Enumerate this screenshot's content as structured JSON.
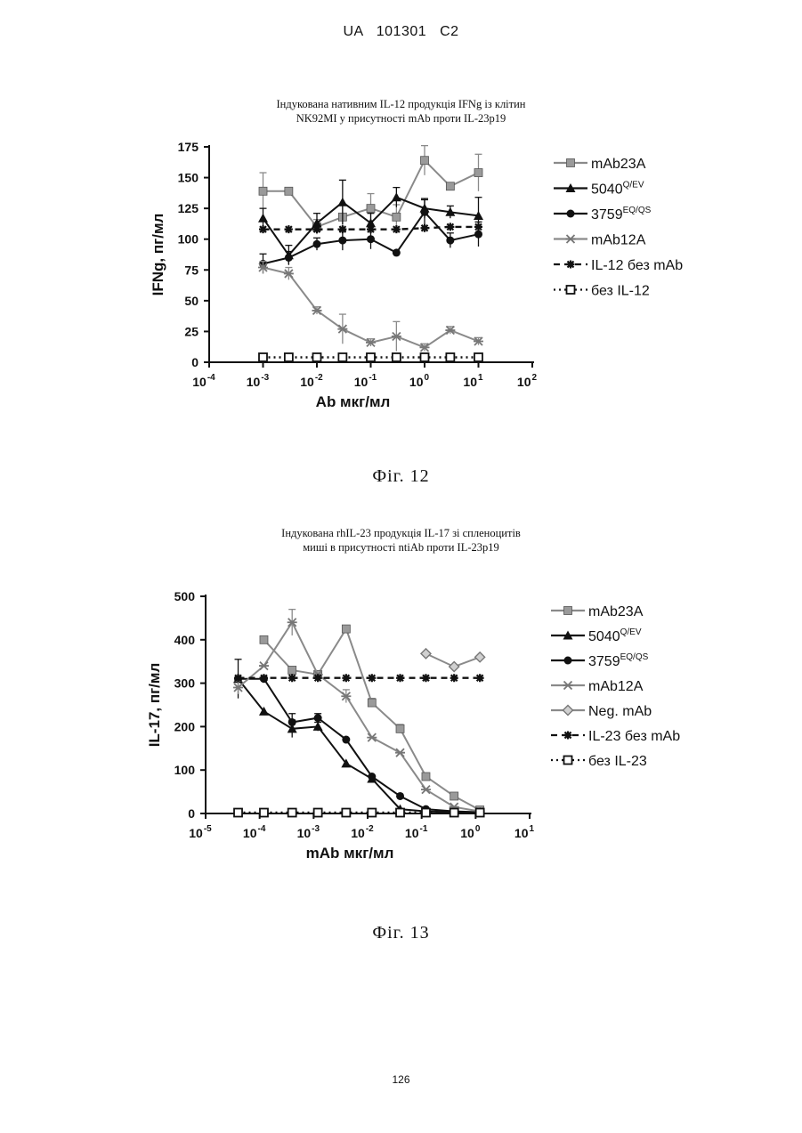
{
  "header": {
    "left": "UA",
    "number": "101301",
    "code": "C2",
    "full": "UA   101301   C2"
  },
  "page_number": "126",
  "figures": [
    {
      "caption": "Фіг. 12"
    },
    {
      "caption": "Фіг. 13"
    }
  ],
  "chart_data": [
    {
      "type": "line",
      "title_line1": "Індукована нативним IL-12 продукція IFNg із клітин",
      "title_line2": "NK92MI у присутності mAb проти IL-23p19",
      "xlabel": "Ab мкг/мл",
      "ylabel": "IFNg, пг/мл",
      "x_scale": "log",
      "xlim_exp": [
        -4,
        2
      ],
      "xticks": [
        {
          "base": "10",
          "exp": "-4",
          "v": -4
        },
        {
          "base": "10",
          "exp": "-3",
          "v": -3
        },
        {
          "base": "10",
          "exp": "-2",
          "v": -2
        },
        {
          "base": "10",
          "exp": "-1",
          "v": -1
        },
        {
          "base": "10",
          "exp": "0",
          "v": 0
        },
        {
          "base": "10",
          "exp": "1",
          "v": 1
        },
        {
          "base": "10",
          "exp": "2",
          "v": 2
        }
      ],
      "ylim": [
        0,
        175
      ],
      "yticks": [
        "0",
        "25",
        "50",
        "75",
        "100",
        "125",
        "150",
        "175"
      ],
      "ytick_values": [
        0,
        25,
        50,
        75,
        100,
        125,
        150,
        175
      ],
      "x": [
        0.001,
        0.003,
        0.01,
        0.03,
        0.1,
        0.3,
        1,
        3,
        10
      ],
      "legend_position": "right",
      "series": [
        {
          "name": "mAb23A",
          "sup": "",
          "marker": "square-gray",
          "dash": "solid",
          "color": "#8a8a8a",
          "values": [
            139,
            139,
            110,
            118,
            125,
            118,
            164,
            143,
            154
          ],
          "err": [
            15,
            0,
            6,
            10,
            12,
            10,
            12,
            0,
            15
          ]
        },
        {
          "name": "5040",
          "sup": "Q/EV",
          "marker": "triangle",
          "dash": "solid",
          "color": "#111111",
          "values": [
            117,
            87,
            113,
            130,
            113,
            134,
            125,
            122,
            119
          ],
          "err": [
            8,
            8,
            8,
            18,
            8,
            8,
            8,
            5,
            15
          ]
        },
        {
          "name": "3759",
          "sup": "EQ/QS",
          "marker": "circle",
          "dash": "solid",
          "color": "#111111",
          "values": [
            80,
            85,
            96,
            99,
            100,
            89,
            122,
            99,
            104
          ],
          "err": [
            8,
            5,
            5,
            8,
            8,
            0,
            10,
            6,
            10
          ]
        },
        {
          "name": "mAb12A",
          "sup": "",
          "marker": "x",
          "dash": "solid",
          "color": "#8a8a8a",
          "values": [
            77,
            72,
            42,
            27,
            16,
            21,
            12,
            26,
            17
          ],
          "err": [
            5,
            5,
            3,
            12,
            3,
            12,
            3,
            3,
            3
          ]
        },
        {
          "name": "IL-12 без mAb",
          "sup": "",
          "marker": "star",
          "dash": "dashed",
          "color": "#111111",
          "values": [
            108,
            108,
            108,
            108,
            108,
            108,
            109,
            110,
            110
          ],
          "err": [
            0,
            0,
            0,
            0,
            0,
            0,
            0,
            0,
            0
          ]
        },
        {
          "name": "без IL-12",
          "sup": "",
          "marker": "open-square",
          "dash": "dotted",
          "color": "#111111",
          "values": [
            4,
            4,
            4,
            4,
            4,
            4,
            4,
            4,
            4
          ],
          "err": [
            0,
            0,
            0,
            0,
            0,
            0,
            0,
            0,
            0
          ]
        }
      ]
    },
    {
      "type": "line",
      "title_line1": "Індукована rhIL-23 продукція IL-17 зі спленоцитів",
      "title_line2": "миші в присутності ntiAb проти IL-23p19",
      "xlabel": "mAb мкг/мл",
      "ylabel": "IL-17, пг/мл",
      "x_scale": "log",
      "xlim_exp": [
        -5,
        1
      ],
      "xticks": [
        {
          "base": "10",
          "exp": "-5",
          "v": -5
        },
        {
          "base": "10",
          "exp": "-4",
          "v": -4
        },
        {
          "base": "10",
          "exp": "-3",
          "v": -3
        },
        {
          "base": "10",
          "exp": "-2",
          "v": -2
        },
        {
          "base": "10",
          "exp": "-1",
          "v": -1
        },
        {
          "base": "10",
          "exp": "0",
          "v": 0
        },
        {
          "base": "10",
          "exp": "1",
          "v": 1
        }
      ],
      "ylim": [
        0,
        500
      ],
      "yticks": [
        "0",
        "100",
        "200",
        "300",
        "400",
        "500"
      ],
      "ytick_values": [
        0,
        100,
        200,
        300,
        400,
        500
      ],
      "x": [
        4e-05,
        0.00012,
        0.0004,
        0.0012,
        0.004,
        0.012,
        0.04,
        0.12,
        0.4,
        1.2
      ],
      "legend_position": "right",
      "series": [
        {
          "name": "mAb23A",
          "sup": "",
          "marker": "square-gray",
          "dash": "solid",
          "color": "#8a8a8a",
          "values": [
            null,
            400,
            330,
            320,
            425,
            255,
            195,
            85,
            40,
            8
          ],
          "err": [
            0,
            0,
            0,
            0,
            0,
            10,
            10,
            8,
            5,
            0
          ]
        },
        {
          "name": "5040",
          "sup": "Q/EV",
          "marker": "triangle",
          "dash": "solid",
          "color": "#111111",
          "values": [
            310,
            235,
            195,
            200,
            115,
            80,
            10,
            5,
            3,
            3
          ],
          "err": [
            45,
            0,
            20,
            10,
            0,
            0,
            0,
            0,
            0,
            0
          ]
        },
        {
          "name": "3759",
          "sup": "EQ/QS",
          "marker": "circle",
          "dash": "solid",
          "color": "#111111",
          "values": [
            310,
            310,
            210,
            220,
            170,
            85,
            40,
            10,
            5,
            3
          ],
          "err": [
            0,
            0,
            20,
            10,
            0,
            0,
            0,
            0,
            0,
            0
          ]
        },
        {
          "name": "mAb12A",
          "sup": "",
          "marker": "x",
          "dash": "solid",
          "color": "#8a8a8a",
          "values": [
            290,
            340,
            440,
            320,
            270,
            175,
            140,
            55,
            15,
            5
          ],
          "err": [
            15,
            0,
            30,
            0,
            15,
            0,
            0,
            0,
            0,
            0
          ]
        },
        {
          "name": "Neg. mAb",
          "sup": "",
          "marker": "diamond-gray",
          "dash": "solid",
          "color": "#8a8a8a",
          "values": [
            null,
            null,
            null,
            null,
            null,
            null,
            null,
            368,
            338,
            360
          ],
          "err": [
            0,
            0,
            0,
            0,
            0,
            0,
            0,
            0,
            0,
            0
          ]
        },
        {
          "name": "IL-23 без mAb",
          "sup": "",
          "marker": "star",
          "dash": "dashed",
          "color": "#111111",
          "values": [
            312,
            312,
            312,
            312,
            312,
            312,
            312,
            312,
            312,
            312
          ],
          "err": [
            0,
            0,
            0,
            0,
            0,
            0,
            0,
            0,
            0,
            0
          ]
        },
        {
          "name": "без IL-23",
          "sup": "",
          "marker": "open-square",
          "dash": "dotted",
          "color": "#111111",
          "values": [
            2,
            2,
            2,
            2,
            2,
            2,
            2,
            2,
            2,
            2
          ],
          "err": [
            0,
            0,
            0,
            0,
            0,
            0,
            0,
            0,
            0,
            0
          ]
        }
      ]
    }
  ]
}
